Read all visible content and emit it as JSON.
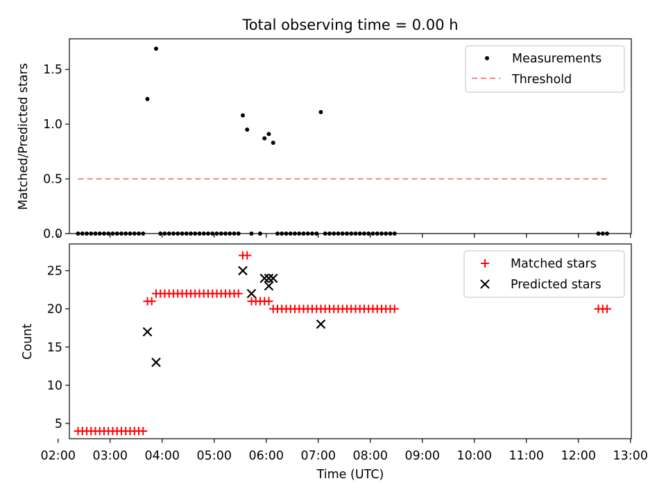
{
  "title": "Total observing time = 0.00 h",
  "colors": {
    "measurements": "#000000",
    "threshold": "#ff8080",
    "matched": "#ff0000",
    "predicted": "#000000"
  },
  "chart_data": [
    {
      "type": "scatter",
      "ylabel": "Matched/Predicted stars",
      "ylim": [
        0,
        1.78
      ],
      "yticks": [
        "0.0",
        "0.5",
        "1.0",
        "1.5"
      ],
      "ytick_values": [
        0,
        0.5,
        1.0,
        1.5
      ],
      "legend": {
        "placement": "top-right",
        "entries": [
          "Measurements",
          "Threshold"
        ]
      },
      "threshold": {
        "y": 0.5,
        "x_start": "02:23",
        "x_end": "12:33"
      },
      "series": [
        {
          "name": "Measurements",
          "x": [
            "02:23",
            "02:28",
            "02:33",
            "02:38",
            "02:43",
            "02:48",
            "02:53",
            "02:58",
            "03:03",
            "03:08",
            "03:13",
            "03:18",
            "03:23",
            "03:28",
            "03:33",
            "03:38",
            "03:43",
            "03:53",
            "03:58",
            "04:03",
            "04:08",
            "04:13",
            "04:18",
            "04:23",
            "04:28",
            "04:33",
            "04:38",
            "04:43",
            "04:48",
            "04:53",
            "04:58",
            "05:03",
            "05:08",
            "05:13",
            "05:18",
            "05:23",
            "05:28",
            "05:33",
            "05:38",
            "05:43",
            "05:53",
            "05:58",
            "06:03",
            "06:08",
            "06:13",
            "06:18",
            "06:23",
            "06:28",
            "06:33",
            "06:38",
            "06:43",
            "06:48",
            "06:53",
            "06:58",
            "07:03",
            "07:08",
            "07:13",
            "07:18",
            "07:23",
            "07:28",
            "07:33",
            "07:38",
            "07:43",
            "07:48",
            "07:53",
            "07:58",
            "08:03",
            "08:08",
            "08:13",
            "08:18",
            "08:23",
            "08:28",
            "12:23",
            "12:28",
            "12:33"
          ],
          "y": [
            0,
            0,
            0,
            0,
            0,
            0,
            0,
            0,
            0,
            0,
            0,
            0,
            0,
            0,
            0,
            0,
            1.23,
            1.69,
            0,
            0,
            0,
            0,
            0,
            0,
            0,
            0,
            0,
            0,
            0,
            0,
            0,
            0,
            0,
            0,
            0,
            0,
            0,
            1.08,
            0.95,
            0,
            0,
            0.87,
            0.91,
            0.83,
            0,
            0,
            0,
            0,
            0,
            0,
            0,
            0,
            0,
            0,
            1.11,
            0,
            0,
            0,
            0,
            0,
            0,
            0,
            0,
            0,
            0,
            0,
            0,
            0,
            0,
            0,
            0,
            0,
            0,
            0,
            0
          ]
        }
      ]
    },
    {
      "type": "scatter",
      "xlabel": "Time (UTC)",
      "ylabel": "Count",
      "ylim": [
        3,
        28.5
      ],
      "yticks": [
        "5",
        "10",
        "15",
        "20",
        "25"
      ],
      "ytick_values": [
        5,
        10,
        15,
        20,
        25
      ],
      "xlim": [
        "02:13",
        "13:01"
      ],
      "xticks": [
        "02:00",
        "03:00",
        "04:00",
        "05:00",
        "06:00",
        "07:00",
        "08:00",
        "09:00",
        "10:00",
        "11:00",
        "12:00",
        "13:00"
      ],
      "legend": {
        "placement": "top-right",
        "entries": [
          "Matched stars",
          "Predicted stars"
        ]
      },
      "series": [
        {
          "name": "Matched stars",
          "x": [
            "02:23",
            "02:28",
            "02:33",
            "02:38",
            "02:43",
            "02:48",
            "02:53",
            "02:58",
            "03:03",
            "03:08",
            "03:13",
            "03:18",
            "03:23",
            "03:28",
            "03:33",
            "03:38",
            "03:43",
            "03:48",
            "03:53",
            "03:58",
            "04:03",
            "04:08",
            "04:13",
            "04:18",
            "04:23",
            "04:28",
            "04:33",
            "04:38",
            "04:43",
            "04:48",
            "04:53",
            "04:58",
            "05:03",
            "05:08",
            "05:13",
            "05:18",
            "05:23",
            "05:28",
            "05:33",
            "05:38",
            "05:43",
            "05:48",
            "05:53",
            "05:58",
            "06:03",
            "06:08",
            "06:13",
            "06:18",
            "06:23",
            "06:28",
            "06:33",
            "06:38",
            "06:43",
            "06:48",
            "06:53",
            "06:58",
            "07:03",
            "07:08",
            "07:13",
            "07:18",
            "07:23",
            "07:28",
            "07:33",
            "07:38",
            "07:43",
            "07:48",
            "07:53",
            "07:58",
            "08:03",
            "08:08",
            "08:13",
            "08:18",
            "08:23",
            "08:28",
            "12:23",
            "12:28",
            "12:33"
          ],
          "y": [
            4,
            4,
            4,
            4,
            4,
            4,
            4,
            4,
            4,
            4,
            4,
            4,
            4,
            4,
            4,
            4,
            21,
            21,
            22,
            22,
            22,
            22,
            22,
            22,
            22,
            22,
            22,
            22,
            22,
            22,
            22,
            22,
            22,
            22,
            22,
            22,
            22,
            22,
            27,
            27,
            21,
            21,
            21,
            21,
            21,
            20,
            20,
            20,
            20,
            20,
            20,
            20,
            20,
            20,
            20,
            20,
            20,
            20,
            20,
            20,
            20,
            20,
            20,
            20,
            20,
            20,
            20,
            20,
            20,
            20,
            20,
            20,
            20,
            20,
            20,
            20,
            20
          ]
        },
        {
          "name": "Predicted stars",
          "x": [
            "03:43",
            "03:53",
            "05:33",
            "05:43",
            "05:58",
            "06:03",
            "06:03",
            "06:08",
            "07:03"
          ],
          "y": [
            17,
            13,
            25,
            22,
            24,
            24,
            23,
            24,
            18
          ]
        }
      ]
    }
  ]
}
